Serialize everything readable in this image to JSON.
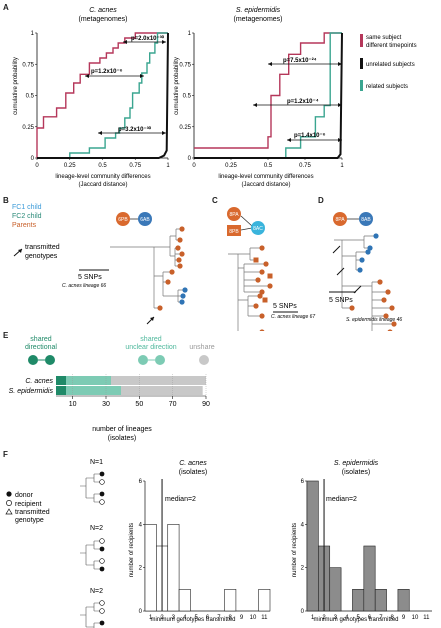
{
  "panels": {
    "a": "A",
    "b": "B",
    "c": "C",
    "d": "D",
    "e": "E",
    "f": "F"
  },
  "colors": {
    "same_subject": "#b5375a",
    "unrelated": "#111111",
    "related": "#3aa590",
    "fc1": "#3a78b8",
    "fc2": "#2a8a78",
    "parents": "#c8602a",
    "child_blue": "#2f74b5",
    "shared_dir": "#1f8a68",
    "shared_unclear": "#7dcbb4",
    "unshared": "#c8c8c8"
  },
  "panel_a": {
    "left": {
      "title": "C. acnes",
      "subtitle": "(metagenomes)",
      "p_same": "p=2.0x10⁻³⁰",
      "p_unrel": "p=1.2x10⁻⁶",
      "p_rel": "p=3.2x10⁻³⁰"
    },
    "right": {
      "title": "S. epidermidis",
      "subtitle": "(metagenomes)",
      "p_same": "p=7.5x10⁻²⁴",
      "p_unrel": "p=1.2x10⁻⁴",
      "p_rel": "p=1.4x10⁻⁶"
    },
    "ylabel": "cumulative probability",
    "xlabel1": "lineage-level community differences",
    "xlabel2": "(Jaccard distance)",
    "yticks": [
      "0",
      "0.25",
      "0.5",
      "0.75",
      "1"
    ],
    "xticks": [
      "0",
      "0.25",
      "0.5",
      "0.75",
      "1"
    ],
    "legend": {
      "same1": "same subject",
      "same2": "different timepoints",
      "unrelated": "unrelated subjects",
      "related": "related subjects"
    }
  },
  "panel_b": {
    "legend_fc1": "FC1 child",
    "legend_fc2": "FC2 child",
    "legend_parents": "Parents",
    "transmitted1": "transmitted",
    "transmitted2": "genotypes",
    "node_parent": "6PB",
    "node_child": "6AB",
    "scale": "5 SNPs",
    "lineage": "C. acnes lineage 66"
  },
  "panel_c": {
    "node_a": "8PA",
    "node_b": "8PB",
    "node_c": "8AC",
    "scale": "5 SNPs",
    "lineage": "C. acnes lineage 67"
  },
  "panel_d": {
    "node_a": "8PA",
    "node_b": "8AB",
    "scale": "5 SNPs",
    "lineage": "S. epidermidis lineage 46"
  },
  "panel_e": {
    "legend_dir1": "shared",
    "legend_dir2": "directional",
    "legend_unc1": "shared",
    "legend_unc2": "unclear direction",
    "legend_unshared": "unshared",
    "rows": [
      {
        "label": "C. acnes",
        "directional": 6,
        "unclear": 27,
        "unshared": 57
      },
      {
        "label": "S. epidermidis",
        "directional": 6,
        "unclear": 33,
        "unshared": 49
      }
    ],
    "xticks": [
      "10",
      "30",
      "50",
      "70",
      "90"
    ],
    "xlabel1": "number of lineages",
    "xlabel2": "(isolates)"
  },
  "panel_f": {
    "legend": {
      "donor": "donor",
      "recipient": "recipient",
      "transmitted1": "transmitted",
      "transmitted2": "genotype"
    },
    "n_labels": [
      "N=1",
      "N=2",
      "N=2"
    ],
    "ylabel": "number of recipients",
    "xlabel": "minimum genotypes transmitted",
    "xticks": [
      "1",
      "2",
      "3",
      "4",
      "5",
      "6",
      "7",
      "8",
      "9",
      "10",
      "11"
    ],
    "yticks": [
      "0",
      "2",
      "4",
      "6"
    ],
    "left": {
      "title": "C. acnes",
      "subtitle": "(isolates)",
      "median": "median=2"
    },
    "right": {
      "title": "S. epidermidis",
      "subtitle": "(isolates)",
      "median": "median=2"
    }
  },
  "chart_data": [
    {
      "type": "line",
      "title": "C. acnes",
      "subtitle": "(metagenomes)",
      "xlabel": "lineage-level community differences (Jaccard distance)",
      "ylabel": "cumulative probability",
      "xlim": [
        0,
        1
      ],
      "ylim": [
        0,
        1
      ],
      "series": [
        {
          "name": "same subject different timepoints",
          "x": [
            0,
            0,
            0.05,
            0.05,
            0.15,
            0.15,
            0.22,
            0.22,
            0.28,
            0.28,
            0.33,
            0.33,
            0.4,
            0.4,
            0.48,
            0.48,
            0.53,
            0.53,
            0.58,
            0.58,
            0.62,
            0.62,
            0.67,
            0.67,
            0.75,
            0.75,
            1
          ],
          "y": [
            0,
            0.24,
            0.24,
            0.33,
            0.33,
            0.4,
            0.4,
            0.52,
            0.52,
            0.6,
            0.6,
            0.67,
            0.67,
            0.76,
            0.76,
            0.8,
            0.8,
            0.84,
            0.84,
            0.88,
            0.88,
            0.92,
            0.92,
            0.96,
            0.96,
            1,
            1
          ]
        },
        {
          "name": "related subjects",
          "x": [
            0,
            0.25,
            0.25,
            0.4,
            0.4,
            0.52,
            0.52,
            0.6,
            0.6,
            0.63,
            0.63,
            0.67,
            0.67,
            0.71,
            0.71,
            0.73,
            0.73,
            0.78,
            0.78,
            0.8,
            0.8,
            0.84,
            0.84,
            0.86,
            0.86,
            0.9,
            0.9,
            0.92,
            0.92,
            1
          ],
          "y": [
            0,
            0,
            0.04,
            0.04,
            0.08,
            0.08,
            0.16,
            0.16,
            0.2,
            0.2,
            0.24,
            0.24,
            0.32,
            0.32,
            0.4,
            0.4,
            0.52,
            0.52,
            0.6,
            0.6,
            0.68,
            0.68,
            0.76,
            0.76,
            0.84,
            0.84,
            0.92,
            0.92,
            1,
            1
          ]
        },
        {
          "name": "unrelated subjects",
          "x": [
            0,
            0.93,
            0.97,
            0.99,
            1
          ],
          "y": [
            0,
            0,
            0.02,
            0.06,
            1
          ]
        }
      ]
    },
    {
      "type": "line",
      "title": "S. epidermidis",
      "subtitle": "(metagenomes)",
      "xlabel": "lineage-level community differences (Jaccard distance)",
      "ylabel": "cumulative probability",
      "xlim": [
        0,
        1
      ],
      "ylim": [
        0,
        1
      ],
      "series": [
        {
          "name": "same subject different timepoints",
          "x": [
            0,
            0.5,
            0.5,
            0.52,
            0.52,
            0.58,
            0.58,
            0.64,
            0.64,
            0.72,
            0.72,
            0.88,
            0.88,
            1
          ],
          "y": [
            0.08,
            0.08,
            0.17,
            0.17,
            0.5,
            0.5,
            0.67,
            0.67,
            0.83,
            0.83,
            0.92,
            0.92,
            1,
            1
          ]
        },
        {
          "name": "related subjects",
          "x": [
            0,
            0.62,
            0.62,
            0.72,
            0.72,
            0.82,
            0.82,
            0.88,
            0.88,
            0.92,
            0.92,
            1
          ],
          "y": [
            0,
            0,
            0.08,
            0.08,
            0.17,
            0.17,
            0.33,
            0.33,
            0.42,
            0.42,
            1,
            1
          ]
        },
        {
          "name": "unrelated subjects",
          "x": [
            0,
            0.97,
            0.99,
            1
          ],
          "y": [
            0,
            0,
            0.03,
            1
          ]
        }
      ]
    },
    {
      "type": "bar",
      "title": "",
      "categories": [
        "C. acnes",
        "S. epidermidis"
      ],
      "xlabel": "number of lineages (isolates)",
      "xlim": [
        0,
        90
      ],
      "series": [
        {
          "name": "shared directional",
          "values": [
            6,
            6
          ]
        },
        {
          "name": "shared unclear direction",
          "values": [
            27,
            33
          ]
        },
        {
          "name": "unshared",
          "values": [
            57,
            49
          ]
        }
      ]
    },
    {
      "type": "bar",
      "title": "C. acnes",
      "subtitle": "(isolates)",
      "xlabel": "minimum genotypes transmitted",
      "ylabel": "number of recipients",
      "categories": [
        1,
        2,
        3,
        4,
        5,
        6,
        7,
        8,
        9,
        10,
        11
      ],
      "values": [
        4,
        3,
        4,
        1,
        0,
        0,
        0,
        1,
        0,
        0,
        1
      ],
      "median": 2,
      "ylim": [
        0,
        6
      ]
    },
    {
      "type": "bar",
      "title": "S. epidermidis",
      "subtitle": "(isolates)",
      "xlabel": "minimum genotypes transmitted",
      "ylabel": "number of recipients",
      "categories": [
        1,
        2,
        3,
        4,
        5,
        6,
        7,
        8,
        9,
        10,
        11
      ],
      "values": [
        6,
        3,
        2,
        0,
        1,
        3,
        1,
        0,
        1,
        0,
        0
      ],
      "median": 2,
      "ylim": [
        0,
        6
      ]
    }
  ]
}
